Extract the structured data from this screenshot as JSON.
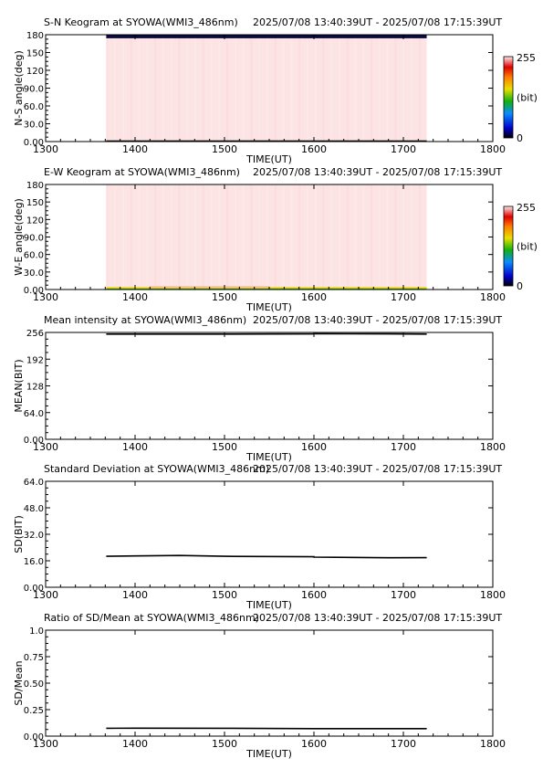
{
  "panels": [
    {
      "title": "S-N Keogram at SYOWA(WMI3_486nm)",
      "time_range": "2025/07/08 13:40:39UT - 2025/07/08 17:15:39UT"
    },
    {
      "title": "E-W Keogram at SYOWA(WMI3_486nm)",
      "time_range": "2025/07/08 13:40:39UT - 2025/07/08 17:15:39UT"
    },
    {
      "title": "Mean intensity at SYOWA(WMI3_486nm)",
      "time_range": "2025/07/08 13:40:39UT - 2025/07/08 17:15:39UT"
    },
    {
      "title": "Standard Deviation at SYOWA(WMI3_486nm)",
      "time_range": "2025/07/08 13:40:39UT - 2025/07/08 17:15:39UT"
    },
    {
      "title": "Ratio of SD/Mean at SYOWA(WMI3_486nm)",
      "time_range": "2025/07/08 13:40:39UT - 2025/07/08 17:15:39UT"
    }
  ],
  "colorbar": {
    "max_label": "255",
    "min_label": "0",
    "unit_label": "(bit)"
  },
  "chart_data": [
    {
      "type": "heatmap",
      "title": "S-N Keogram at SYOWA(WMI3_486nm)",
      "xlabel": "TIME(UT)",
      "ylabel": "N-S angle(deg)",
      "xlim": [
        1300,
        1800
      ],
      "ylim": [
        0,
        180
      ],
      "x_ticks": [
        "1300",
        "1400",
        "1500",
        "1600",
        "1700",
        "1800"
      ],
      "y_ticks": [
        "0.00",
        "30.0",
        "60.0",
        "90.0",
        "120",
        "150",
        "180"
      ],
      "data_start": 1340.65,
      "data_end": 1715.65,
      "fill_color": "#fde4e4",
      "edge_bands": [
        {
          "from": 0,
          "to": 2,
          "color": "#000000"
        },
        {
          "from": 174,
          "to": 180,
          "color": "#0a0a3c"
        }
      ]
    },
    {
      "type": "heatmap",
      "title": "E-W Keogram at SYOWA(WMI3_486nm)",
      "xlabel": "TIME(UT)",
      "ylabel": "W-E angle(deg)",
      "xlim": [
        1300,
        1800
      ],
      "ylim": [
        0,
        180
      ],
      "x_ticks": [
        "1300",
        "1400",
        "1500",
        "1600",
        "1700",
        "1800"
      ],
      "y_ticks": [
        "0.00",
        "30.0",
        "60.0",
        "90.0",
        "120",
        "150",
        "180"
      ],
      "data_start": 1340.65,
      "data_end": 1715.65,
      "fill_color": "#fde4e4",
      "edge_bands": [
        {
          "from": 0,
          "to": 2,
          "color": "#44b800"
        },
        {
          "from": 2,
          "to": 4,
          "color": "#e0d000"
        }
      ]
    },
    {
      "type": "line",
      "title": "Mean intensity at SYOWA(WMI3_486nm)",
      "xlabel": "TIME(UT)",
      "ylabel": "MEAN(BIT)",
      "xlim": [
        1300,
        1800
      ],
      "ylim": [
        0,
        256
      ],
      "x_ticks": [
        "1300",
        "1400",
        "1500",
        "1600",
        "1700",
        "1800"
      ],
      "y_ticks": [
        "0.00",
        "64.0",
        "128",
        "192",
        "256"
      ],
      "series": [
        {
          "x": [
            1340.65,
            1400,
            1500,
            1560,
            1600,
            1650,
            1715.65
          ],
          "y": [
            252,
            252,
            252,
            252.5,
            253,
            252.5,
            252
          ]
        }
      ]
    },
    {
      "type": "line",
      "title": "Standard Deviation at SYOWA(WMI3_486nm)",
      "xlabel": "TIME(UT)",
      "ylabel": "SD(BIT)",
      "xlim": [
        1300,
        1800
      ],
      "ylim": [
        0,
        64
      ],
      "x_ticks": [
        "1300",
        "1400",
        "1500",
        "1600",
        "1700",
        "1800"
      ],
      "y_ticks": [
        "0.00",
        "16.0",
        "32.0",
        "48.0",
        "64.0"
      ],
      "series": [
        {
          "x": [
            1340.65,
            1400,
            1430,
            1500,
            1560,
            1600,
            1650,
            1715.65
          ],
          "y": [
            18.7,
            18.9,
            19.2,
            18.7,
            18.4,
            18.2,
            17.8,
            17.9
          ]
        }
      ]
    },
    {
      "type": "line",
      "title": "Ratio of SD/Mean at SYOWA(WMI3_486nm)",
      "xlabel": "TIME(UT)",
      "ylabel": "SD/Mean",
      "xlim": [
        1300,
        1800
      ],
      "ylim": [
        0,
        1
      ],
      "x_ticks": [
        "1300",
        "1400",
        "1500",
        "1600",
        "1700",
        "1800"
      ],
      "y_ticks": [
        "0.00",
        "0.25",
        "0.50",
        "0.75",
        "1.0"
      ],
      "series": [
        {
          "x": [
            1340.65,
            1400,
            1500,
            1600,
            1715.65
          ],
          "y": [
            0.074,
            0.075,
            0.074,
            0.071,
            0.071
          ]
        }
      ]
    }
  ]
}
